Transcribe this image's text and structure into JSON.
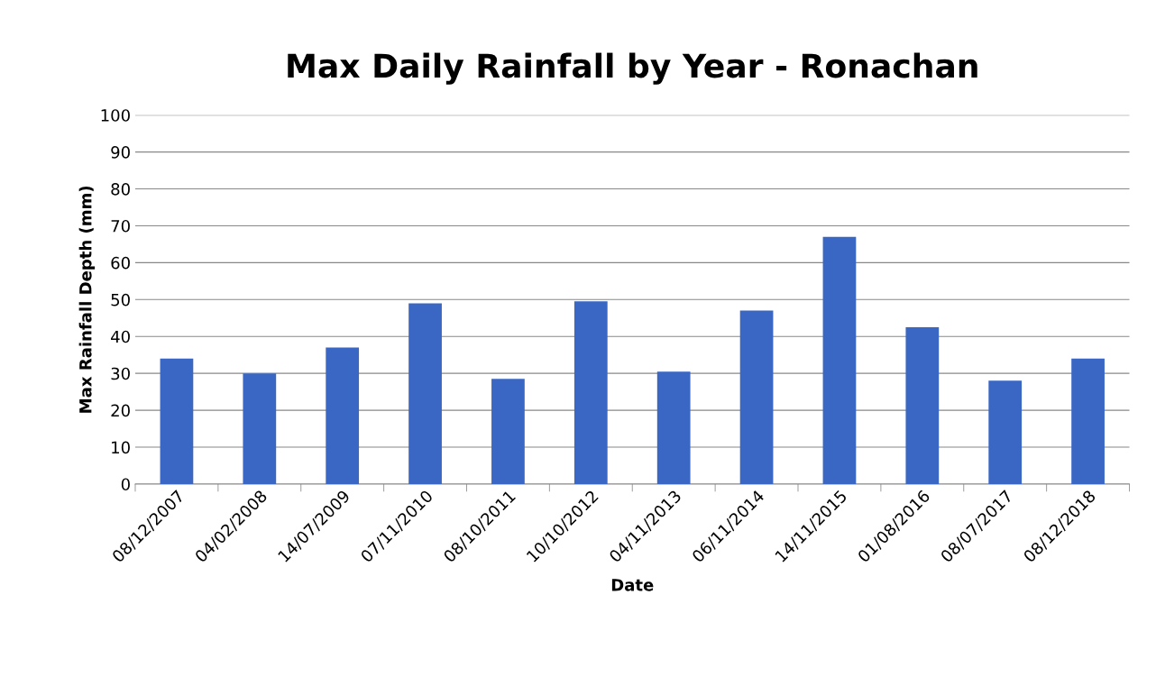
{
  "chart_data": {
    "type": "bar",
    "title": "Max Daily Rainfall by Year - Ronachan",
    "xlabel": "Date",
    "ylabel": "Max Rainfall Depth (mm)",
    "categories": [
      "08/12/2007",
      "04/02/2008",
      "14/07/2009",
      "07/11/2010",
      "08/10/2011",
      "10/10/2012",
      "04/11/2013",
      "06/11/2014",
      "14/11/2015",
      "01/08/2016",
      "08/07/2017",
      "08/12/2018"
    ],
    "values": [
      34,
      30,
      37,
      49,
      28.5,
      49.5,
      30.5,
      47,
      67,
      42.5,
      28,
      34
    ],
    "color": "#3a67c4",
    "ylim": [
      0,
      100
    ],
    "yticks": [
      0,
      10,
      20,
      30,
      40,
      50,
      60,
      70,
      80,
      90,
      100
    ],
    "grid": "y",
    "legend": false
  }
}
